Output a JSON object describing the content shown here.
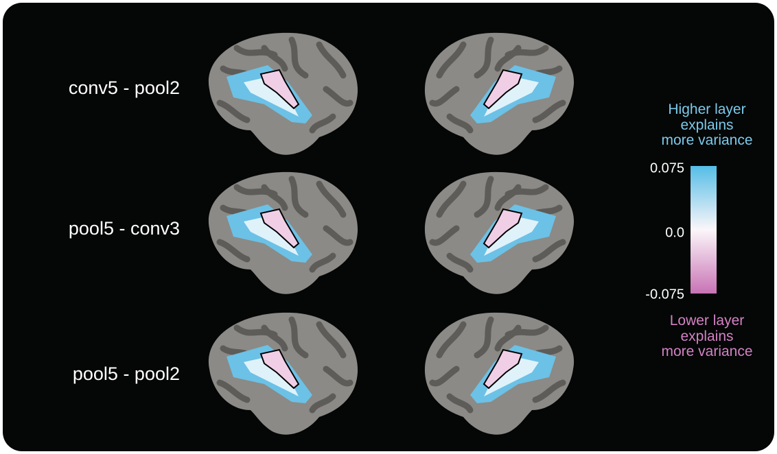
{
  "rows": [
    {
      "label": "conv5 - pool2"
    },
    {
      "label": "pool5 - conv3"
    },
    {
      "label": "pool5 - pool2"
    }
  ],
  "colorbar": {
    "higher_label": [
      "Higher layer",
      "explains",
      "more variance"
    ],
    "ticks": [
      "0.075",
      "0.0",
      "-0.075"
    ],
    "lower_label": [
      "Lower layer",
      "explains",
      "more variance"
    ]
  }
}
